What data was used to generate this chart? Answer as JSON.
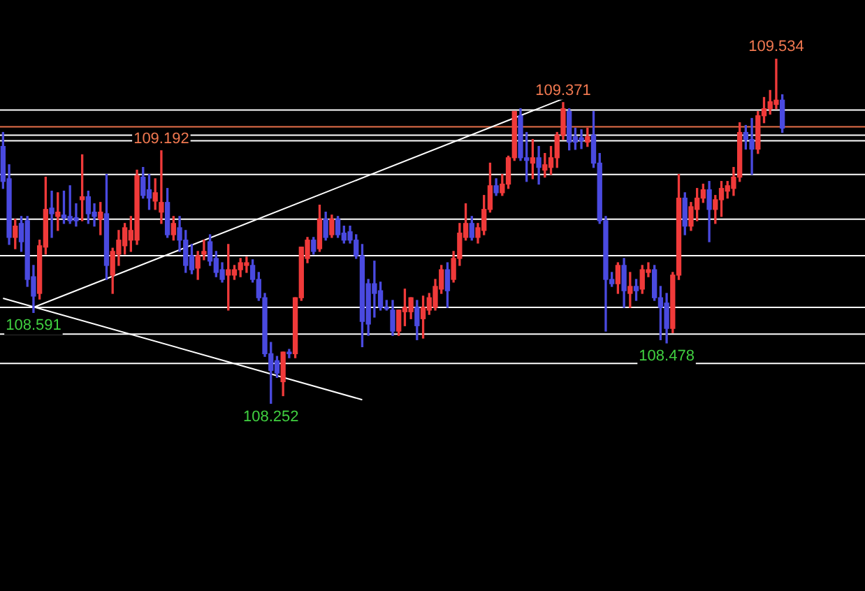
{
  "chart_data": {
    "type": "candlestick",
    "categories": [
      null,
      null,
      null,
      null,
      null,
      null,
      null,
      null,
      null,
      null,
      null,
      null,
      null,
      null,
      null,
      null,
      null,
      null,
      null,
      null,
      null,
      null,
      null,
      null,
      null,
      null,
      null,
      null,
      null,
      null,
      null,
      null,
      null,
      null,
      null,
      null,
      null,
      null,
      null,
      null,
      null,
      null,
      null,
      null,
      null,
      null,
      null,
      null,
      null,
      null,
      null,
      null,
      null,
      null,
      null,
      null,
      null,
      null,
      null,
      null,
      null,
      null,
      null,
      null,
      null,
      null,
      null,
      null,
      null,
      null,
      null,
      null,
      null,
      null,
      null,
      null,
      null,
      null,
      null,
      null,
      null,
      null,
      null,
      null,
      null,
      null,
      null,
      null,
      null,
      null,
      null,
      null,
      null,
      null,
      null,
      null,
      null,
      null,
      null,
      null,
      null,
      null,
      null,
      null,
      null,
      null,
      null,
      null,
      null,
      null,
      null,
      null,
      null,
      null,
      null,
      null,
      null,
      null,
      null,
      null,
      null,
      null,
      null,
      null,
      null,
      null,
      null,
      null,
      null
    ],
    "ohlc": [
      [
        109.208,
        109.26,
        109.052,
        109.078
      ],
      [
        109.088,
        109.14,
        108.844,
        108.87
      ],
      [
        108.87,
        108.938,
        108.828,
        108.912
      ],
      [
        108.922,
        108.948,
        108.818,
        108.854
      ],
      [
        108.932,
        108.948,
        108.688,
        108.714
      ],
      [
        108.724,
        108.766,
        108.591,
        108.652
      ],
      [
        108.662,
        108.86,
        108.641,
        108.839
      ],
      [
        108.834,
        109.094,
        108.808,
        108.974
      ],
      [
        108.979,
        109.042,
        108.87,
        108.958
      ],
      [
        108.948,
        109.036,
        108.896,
        108.964
      ],
      [
        108.953,
        109.042,
        108.922,
        108.943
      ],
      [
        108.948,
        109.062,
        108.922,
        108.932
      ],
      [
        108.943,
        108.995,
        108.912,
        108.932
      ],
      [
        109.01,
        109.177,
        108.932,
        109.021
      ],
      [
        109.021,
        109.042,
        108.922,
        108.958
      ],
      [
        108.964,
        108.995,
        108.912,
        108.948
      ],
      [
        108.938,
        109.0,
        108.88,
        108.964
      ],
      [
        108.958,
        109.104,
        108.714,
        108.766
      ],
      [
        108.73,
        108.83,
        108.662,
        108.818
      ],
      [
        108.808,
        108.896,
        108.766,
        108.86
      ],
      [
        108.839,
        108.922,
        108.808,
        108.906
      ],
      [
        108.86,
        108.948,
        108.818,
        108.896
      ],
      [
        108.86,
        109.12,
        108.844,
        109.099
      ],
      [
        109.094,
        109.13,
        109.016,
        109.026
      ],
      [
        109.047,
        109.104,
        108.974,
        109.016
      ],
      [
        109.005,
        109.088,
        108.974,
        109.036
      ],
      [
        108.964,
        109.192,
        108.922,
        109.0
      ],
      [
        109.0,
        109.052,
        108.87,
        108.88
      ],
      [
        108.88,
        108.948,
        108.86,
        108.922
      ],
      [
        108.906,
        108.948,
        108.818,
        108.86
      ],
      [
        108.86,
        108.896,
        108.74,
        108.766
      ],
      [
        108.802,
        108.844,
        108.735,
        108.75
      ],
      [
        108.756,
        108.818,
        108.714,
        108.802
      ],
      [
        108.808,
        108.86,
        108.787,
        108.818
      ],
      [
        108.854,
        108.88,
        108.766,
        108.782
      ],
      [
        108.792,
        108.818,
        108.724,
        108.74
      ],
      [
        108.75,
        108.776,
        108.704,
        108.714
      ],
      [
        108.73,
        108.844,
        108.6,
        108.75
      ],
      [
        108.73,
        108.766,
        108.714,
        108.75
      ],
      [
        108.75,
        108.792,
        108.724,
        108.776
      ],
      [
        108.766,
        108.797,
        108.74,
        108.776
      ],
      [
        108.766,
        108.787,
        108.704,
        108.714
      ],
      [
        108.714,
        108.74,
        108.636,
        108.646
      ],
      [
        108.646,
        108.662,
        108.428,
        108.438
      ],
      [
        108.438,
        108.48,
        108.252,
        108.376
      ],
      [
        108.412,
        108.428,
        108.35,
        108.366
      ],
      [
        108.334,
        108.444,
        108.282,
        108.444
      ],
      [
        108.444,
        108.454,
        108.423,
        108.438
      ],
      [
        108.438,
        108.646,
        108.423,
        108.646
      ],
      [
        108.646,
        108.834,
        108.636,
        108.834
      ],
      [
        108.792,
        108.87,
        108.776,
        108.86
      ],
      [
        108.86,
        108.87,
        108.808,
        108.818
      ],
      [
        108.828,
        108.99,
        108.818,
        108.938
      ],
      [
        108.938,
        108.964,
        108.86,
        108.87
      ],
      [
        108.88,
        108.953,
        108.87,
        108.938
      ],
      [
        108.938,
        108.948,
        108.87,
        108.88
      ],
      [
        108.886,
        108.912,
        108.849,
        108.86
      ],
      [
        108.891,
        108.912,
        108.849,
        108.86
      ],
      [
        108.86,
        108.88,
        108.792,
        108.802
      ],
      [
        108.802,
        108.844,
        108.464,
        108.558
      ],
      [
        108.698,
        108.714,
        108.506,
        108.548
      ],
      [
        108.698,
        108.782,
        108.574,
        108.662
      ],
      [
        108.672,
        108.704,
        108.6,
        108.61
      ],
      [
        108.61,
        108.636,
        108.6,
        108.605
      ],
      [
        108.6,
        108.636,
        108.506,
        108.522
      ],
      [
        108.522,
        108.6,
        108.506,
        108.6
      ],
      [
        108.594,
        108.678,
        108.542,
        108.61
      ],
      [
        108.594,
        108.646,
        108.568,
        108.646
      ],
      [
        108.61,
        108.636,
        108.49,
        108.542
      ],
      [
        108.568,
        108.652,
        108.496,
        108.61
      ],
      [
        108.6,
        108.662,
        108.584,
        108.646
      ],
      [
        108.61,
        108.714,
        108.6,
        108.688
      ],
      [
        108.678,
        108.766,
        108.662,
        108.75
      ],
      [
        108.75,
        108.776,
        108.61,
        108.672
      ],
      [
        108.714,
        108.818,
        108.704,
        108.792
      ],
      [
        108.792,
        108.922,
        108.766,
        108.886
      ],
      [
        108.87,
        108.995,
        108.86,
        108.922
      ],
      [
        108.922,
        108.948,
        108.86,
        108.87
      ],
      [
        108.87,
        108.922,
        108.849,
        108.906
      ],
      [
        108.896,
        109.026,
        108.88,
        108.974
      ],
      [
        108.974,
        109.146,
        108.964,
        109.062
      ],
      [
        109.062,
        109.088,
        109.026,
        109.036
      ],
      [
        109.036,
        109.104,
        109.026,
        109.068
      ],
      [
        109.068,
        109.172,
        109.052,
        109.166
      ],
      [
        109.166,
        109.338,
        109.156,
        109.338
      ],
      [
        109.322,
        109.348,
        109.156,
        109.166
      ],
      [
        109.166,
        109.26,
        109.078,
        109.156
      ],
      [
        109.146,
        109.234,
        109.088,
        109.166
      ],
      [
        109.166,
        109.208,
        109.068,
        109.13
      ],
      [
        109.12,
        109.182,
        109.094,
        109.14
      ],
      [
        109.13,
        109.208,
        109.104,
        109.166
      ],
      [
        109.166,
        109.26,
        109.13,
        109.25
      ],
      [
        109.25,
        109.371,
        109.234,
        109.348
      ],
      [
        109.338,
        109.348,
        109.195,
        109.224
      ],
      [
        109.244,
        109.276,
        109.197,
        109.224
      ],
      [
        109.24,
        109.27,
        109.2,
        109.23
      ],
      [
        109.224,
        109.276,
        109.208,
        109.244
      ],
      [
        109.25,
        109.338,
        109.13,
        109.146
      ],
      [
        109.146,
        109.182,
        108.922,
        108.932
      ],
      [
        108.932,
        108.948,
        108.522,
        108.714
      ],
      [
        108.714,
        108.74,
        108.688,
        108.698
      ],
      [
        108.698,
        108.776,
        108.662,
        108.766
      ],
      [
        108.766,
        108.792,
        108.61,
        108.672
      ],
      [
        108.662,
        108.74,
        108.61,
        108.688
      ],
      [
        108.688,
        108.714,
        108.636,
        108.672
      ],
      [
        108.678,
        108.766,
        108.662,
        108.75
      ],
      [
        108.74,
        108.776,
        108.724,
        108.75
      ],
      [
        108.75,
        108.766,
        108.636,
        108.646
      ],
      [
        108.646,
        108.688,
        108.49,
        108.61
      ],
      [
        108.626,
        108.662,
        108.478,
        108.532
      ],
      [
        108.532,
        108.74,
        108.516,
        108.73
      ],
      [
        108.73,
        109.104,
        108.714,
        109.016
      ],
      [
        109.016,
        109.036,
        108.88,
        108.912
      ],
      [
        108.912,
        109.0,
        108.896,
        108.984
      ],
      [
        108.974,
        109.052,
        108.932,
        109.016
      ],
      [
        109.016,
        109.068,
        109.0,
        109.047
      ],
      [
        109.047,
        109.078,
        108.854,
        108.974
      ],
      [
        108.974,
        109.026,
        108.922,
        109.01
      ],
      [
        109.01,
        109.078,
        108.948,
        109.052
      ],
      [
        109.042,
        109.078,
        109.016,
        109.062
      ],
      [
        109.052,
        109.13,
        109.026,
        109.094
      ],
      [
        109.094,
        109.296,
        109.078,
        109.26
      ],
      [
        109.26,
        109.286,
        109.198,
        109.234
      ],
      [
        109.234,
        109.312,
        109.104,
        109.198
      ],
      [
        109.198,
        109.338,
        109.182,
        109.322
      ],
      [
        109.322,
        109.39,
        109.296,
        109.348
      ],
      [
        109.348,
        109.416,
        109.328,
        109.374
      ],
      [
        109.364,
        109.534,
        109.348,
        109.38
      ],
      [
        109.38,
        109.4,
        109.26,
        109.276
      ]
    ],
    "series": [
      {
        "type": "line",
        "color": "#ffffff",
        "values": [
          null,
          null,
          null,
          null,
          null,
          108.61,
          null,
          null,
          null,
          null,
          null,
          null,
          null,
          null,
          null,
          null,
          null,
          null,
          null,
          null,
          null,
          null,
          null,
          null,
          null,
          null,
          null,
          null,
          null,
          null,
          null,
          null,
          null,
          null,
          null,
          null,
          null,
          null,
          null,
          null,
          null,
          null,
          null,
          null,
          null,
          null,
          null,
          null,
          null,
          null,
          null,
          null,
          null,
          null,
          null,
          null,
          null,
          null,
          null,
          null,
          null,
          null,
          null,
          null,
          null,
          null,
          null,
          null,
          null,
          null,
          null,
          null,
          null,
          null,
          null,
          null,
          null,
          null,
          null,
          null,
          null,
          null,
          null,
          null,
          null,
          null,
          null,
          null,
          null,
          null,
          null,
          null,
          109.385,
          null,
          null,
          null,
          null,
          null,
          null,
          null,
          null,
          null,
          null,
          null,
          null,
          null,
          null,
          null,
          null,
          null,
          null,
          null,
          null,
          null,
          null,
          null,
          null,
          null,
          null,
          null,
          null,
          null,
          null,
          null,
          null,
          null,
          null,
          null,
          null
        ]
      },
      {
        "type": "line",
        "color": "#ffffff",
        "values": [
          108.644,
          null,
          null,
          null,
          null,
          null,
          null,
          null,
          null,
          null,
          null,
          null,
          null,
          null,
          null,
          null,
          null,
          null,
          null,
          null,
          null,
          null,
          null,
          null,
          null,
          null,
          null,
          null,
          null,
          null,
          null,
          null,
          null,
          null,
          null,
          null,
          null,
          null,
          null,
          null,
          null,
          null,
          null,
          null,
          null,
          null,
          null,
          null,
          null,
          null,
          null,
          null,
          null,
          null,
          null,
          null,
          null,
          null,
          null,
          108.267,
          null,
          null,
          null,
          null,
          null,
          null,
          null,
          null,
          null,
          null,
          null,
          null,
          null,
          null,
          null,
          null,
          null,
          null,
          null,
          null,
          null,
          null,
          null,
          null,
          null,
          null,
          null,
          null,
          null,
          null,
          null,
          null,
          null,
          null,
          null,
          null,
          null,
          null,
          null,
          null,
          null,
          null,
          null,
          null,
          null,
          null,
          null,
          null,
          null,
          null,
          null,
          null,
          null,
          null,
          null,
          null,
          null,
          null,
          null,
          null,
          null,
          null,
          null,
          null,
          null,
          null,
          null,
          null,
          null
        ]
      }
    ],
    "ref_lines": [
      {
        "axis": "y",
        "value": 109.343,
        "color": "#ffffff"
      },
      {
        "axis": "y",
        "value": 109.281,
        "color": "#e8704a"
      },
      {
        "axis": "y",
        "value": 109.25,
        "color": "#ffffff"
      },
      {
        "axis": "y",
        "value": 109.229,
        "color": "#ffffff"
      },
      {
        "axis": "y",
        "value": 109.104,
        "color": "#ffffff"
      },
      {
        "axis": "y",
        "value": 108.938,
        "color": "#ffffff"
      },
      {
        "axis": "y",
        "value": 108.802,
        "color": "#ffffff"
      },
      {
        "axis": "y",
        "value": 108.61,
        "color": "#ffffff"
      },
      {
        "axis": "y",
        "value": 108.511,
        "color": "#ffffff"
      },
      {
        "axis": "y",
        "value": 108.402,
        "color": "#ffffff"
      }
    ],
    "annotations": [
      {
        "text": "109.192",
        "y": 109.192
      },
      {
        "text": "109.371",
        "y": 109.371
      },
      {
        "text": "109.534",
        "y": 109.534
      },
      {
        "text": "108.591",
        "y": 108.591
      },
      {
        "text": "108.252",
        "y": 108.252
      },
      {
        "text": "108.478",
        "y": 108.478
      }
    ],
    "tick_labels": false
  }
}
